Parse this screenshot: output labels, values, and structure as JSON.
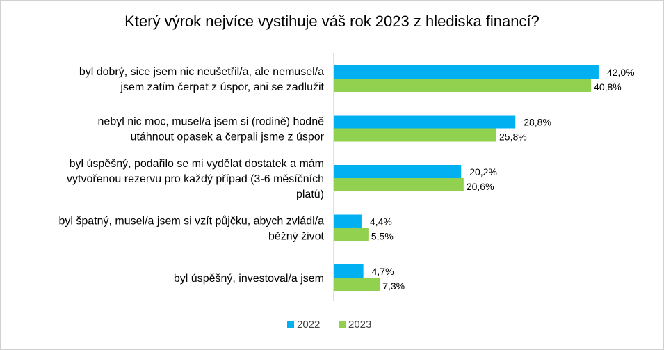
{
  "chart_data": {
    "type": "bar",
    "orientation": "horizontal",
    "title": "Který výrok nejvíce vystihuje váš rok 2023 z hlediska financí?",
    "categories": [
      [
        "byl dobrý, sice jsem nic neušetřil/a, ale nemusel/a",
        "jsem zatím čerpat z úspor, ani se zadlužit"
      ],
      [
        "nebyl nic moc, musel/a jsem si (rodině) hodně",
        "utáhnout opasek a čerpali jsme z úspor"
      ],
      [
        "byl úspěšný, podařilo se mi vydělat dostatek a mám",
        "vytvořenou rezervu pro každý případ (3-6 měsíčních",
        "platů)"
      ],
      [
        "byl špatný, musel/a jsem si vzít půjčku, abych zvládl/a",
        "běžný život"
      ],
      [
        "byl úspěšný, investoval/a jsem"
      ]
    ],
    "series": [
      {
        "name": "2022",
        "color": "#00B0F0",
        "values": [
          42.0,
          28.8,
          20.2,
          4.4,
          4.7
        ],
        "labels": [
          "42,0%",
          "28,8%",
          "20,2%",
          "4,4%",
          "4,7%"
        ]
      },
      {
        "name": "2023",
        "color": "#92D050",
        "values": [
          40.8,
          25.8,
          20.6,
          5.5,
          7.3
        ],
        "labels": [
          "40,8%",
          "25,8%",
          "20,6%",
          "5,5%",
          "7,3%"
        ]
      }
    ],
    "xlim": [
      0,
      45
    ],
    "grid": false,
    "legend": "bottom"
  }
}
